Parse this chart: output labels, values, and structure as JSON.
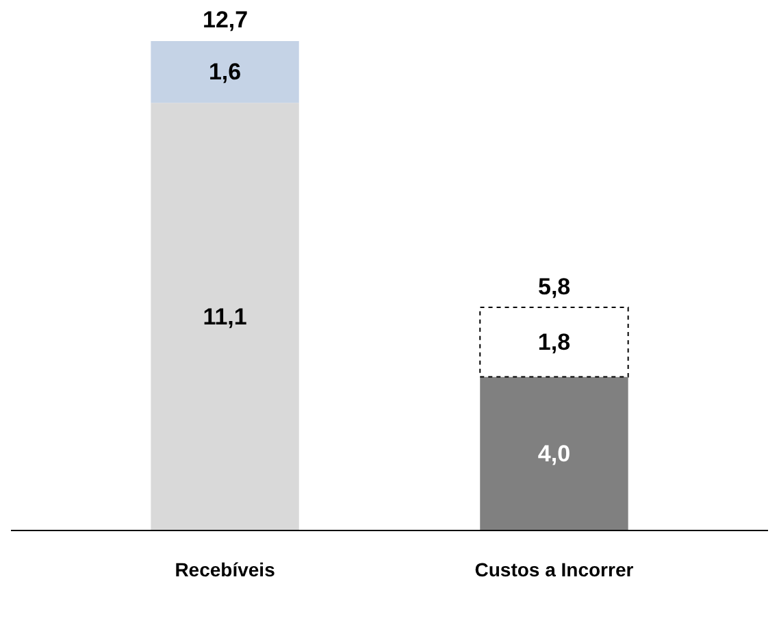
{
  "chart_data": {
    "type": "bar",
    "stacked": true,
    "categories": [
      "Recebíveis",
      "Custos a Incorrer"
    ],
    "series": [
      {
        "colors": [
          "#d9d9d9",
          "#808080"
        ],
        "values": [
          11.1,
          4.0
        ],
        "value_labels": [
          "11,1",
          "4,0"
        ]
      },
      {
        "colors": [
          "#c5d3e6",
          "#ffffff"
        ],
        "values": [
          1.6,
          1.8
        ],
        "value_labels": [
          "1,6",
          "1,8"
        ],
        "line_style": "dotted"
      }
    ],
    "totals": [
      "12,7",
      "5,8"
    ]
  }
}
